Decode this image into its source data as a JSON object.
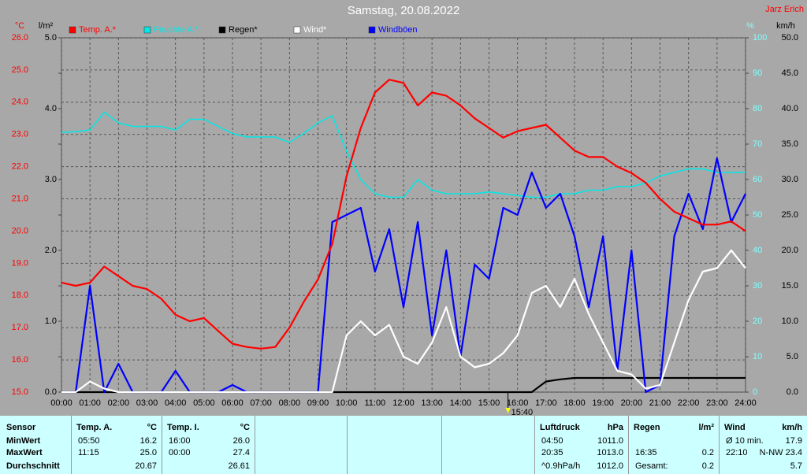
{
  "chart_data": {
    "type": "line",
    "title": "Samstag, 20.08.2022",
    "author": "Jarz Erich",
    "now": "15:40",
    "x": [
      0,
      0.5,
      1,
      1.5,
      2,
      2.5,
      3,
      3.5,
      4,
      4.5,
      5,
      5.5,
      6,
      6.5,
      7,
      7.5,
      8,
      8.5,
      9,
      9.5,
      10,
      10.5,
      11,
      11.5,
      12,
      12.5,
      13,
      13.5,
      14,
      14.5,
      15,
      15.5,
      16,
      16.5,
      17,
      17.5,
      18,
      18.5,
      19,
      19.5,
      20,
      20.5,
      21,
      21.5,
      22,
      22.5,
      23,
      23.5,
      24
    ],
    "xlim": [
      0,
      24
    ],
    "xticks": [
      {
        "value": 0,
        "label": "00:00"
      },
      {
        "value": 1,
        "label": "01:00"
      },
      {
        "value": 2,
        "label": "02:00"
      },
      {
        "value": 3,
        "label": "03:00"
      },
      {
        "value": 4,
        "label": "04:00"
      },
      {
        "value": 5,
        "label": "05:00"
      },
      {
        "value": 6,
        "label": "06:00"
      },
      {
        "value": 7,
        "label": "07:00"
      },
      {
        "value": 8,
        "label": "08:00"
      },
      {
        "value": 9,
        "label": "09:00"
      },
      {
        "value": 10,
        "label": "10:00"
      },
      {
        "value": 11,
        "label": "11:00"
      },
      {
        "value": 12,
        "label": "12:00"
      },
      {
        "value": 13,
        "label": "13:00"
      },
      {
        "value": 14,
        "label": "14:00"
      },
      {
        "value": 15,
        "label": "15:00"
      },
      {
        "value": 16,
        "label": "16:00"
      },
      {
        "value": 17,
        "label": "17:00"
      },
      {
        "value": 18,
        "label": "18:00"
      },
      {
        "value": 19,
        "label": "19:00"
      },
      {
        "value": 20,
        "label": "20:00"
      },
      {
        "value": 21,
        "label": "21:00"
      },
      {
        "value": 22,
        "label": "22:00"
      },
      {
        "value": 23,
        "label": "23:00"
      },
      {
        "value": 24,
        "label": "24:00"
      }
    ],
    "ylabel": "°C",
    "ylim": [
      15,
      26
    ],
    "yticks": [
      {
        "value": 15,
        "label": "15.0"
      },
      {
        "value": 16,
        "label": "16.0"
      },
      {
        "value": 17,
        "label": "17.0"
      },
      {
        "value": 18,
        "label": "18.0"
      },
      {
        "value": 19,
        "label": "19.0"
      },
      {
        "value": 20,
        "label": "20.0"
      },
      {
        "value": 21,
        "label": "21.0"
      },
      {
        "value": 22,
        "label": "22.0"
      },
      {
        "value": 23,
        "label": "23.0"
      },
      {
        "value": 24,
        "label": "24.0"
      },
      {
        "value": 25,
        "label": "25.0"
      },
      {
        "value": 26,
        "label": "26.0"
      }
    ],
    "y2label": "l/m²",
    "y2lim": [
      0,
      5
    ],
    "y2ticks": [
      {
        "value": 0,
        "label": "0.0"
      },
      {
        "value": 1,
        "label": "1.0"
      },
      {
        "value": 2,
        "label": "2.0"
      },
      {
        "value": 3,
        "label": "3.0"
      },
      {
        "value": 4,
        "label": "4.0"
      },
      {
        "value": 5,
        "label": "5.0"
      }
    ],
    "y3label": "%",
    "y3lim": [
      0,
      100
    ],
    "y3ticks": [
      0,
      10,
      20,
      30,
      40,
      50,
      60,
      70,
      80,
      90,
      100
    ],
    "y4label": "km/h",
    "y4lim": [
      0,
      50
    ],
    "y4ticks": [
      {
        "value": 0,
        "label": "0.0"
      },
      {
        "value": 5,
        "label": "5.0"
      },
      {
        "value": 10,
        "label": "10.0"
      },
      {
        "value": 15,
        "label": "15.0"
      },
      {
        "value": 20,
        "label": "20.0"
      },
      {
        "value": 25,
        "label": "25.0"
      },
      {
        "value": 30,
        "label": "30.0"
      },
      {
        "value": 35,
        "label": "35.0"
      },
      {
        "value": 40,
        "label": "40.0"
      },
      {
        "value": 45,
        "label": "45.0"
      },
      {
        "value": 50,
        "label": "50.0"
      }
    ],
    "grid": true,
    "series": [
      {
        "name": "Temp. A.*",
        "color": "#ff0000",
        "axis": "y",
        "values": [
          18.4,
          18.3,
          18.4,
          18.9,
          18.6,
          18.3,
          18.2,
          17.9,
          17.4,
          17.2,
          17.3,
          16.9,
          16.5,
          16.4,
          16.35,
          16.4,
          17.0,
          17.8,
          18.5,
          19.6,
          21.7,
          23.2,
          24.3,
          24.7,
          24.6,
          23.9,
          24.3,
          24.2,
          23.9,
          23.5,
          23.2,
          22.9,
          23.1,
          23.2,
          23.3,
          22.9,
          22.5,
          22.3,
          22.3,
          22.0,
          21.8,
          21.5,
          21.0,
          20.6,
          20.4,
          20.2,
          20.2,
          20.3,
          20.0
        ]
      },
      {
        "name": "Feuchte A.*",
        "color": "#00e8e8",
        "axis": "y3",
        "values": [
          73.3,
          73.5,
          74,
          79,
          76,
          75,
          75,
          75,
          74,
          77,
          77,
          75,
          73,
          72,
          72,
          72,
          70.5,
          73,
          76,
          78,
          68,
          60,
          56,
          55,
          55,
          60,
          57,
          56,
          56,
          56,
          56.5,
          56,
          55.5,
          55,
          55,
          56,
          56,
          57,
          57,
          58,
          58,
          59,
          61,
          62,
          63,
          63,
          62,
          62,
          62
        ]
      },
      {
        "name": "Regen*",
        "color": "#000000",
        "axis": "y2",
        "values": [
          0,
          0,
          0,
          0,
          0,
          0,
          0,
          0,
          0,
          0,
          0,
          0,
          0,
          0,
          0,
          0,
          0,
          0,
          0,
          0,
          0,
          0,
          0,
          0,
          0,
          0,
          0,
          0,
          0,
          0,
          0,
          0,
          0,
          0,
          0.15,
          0.18,
          0.2,
          0.2,
          0.2,
          0.2,
          0.2,
          0.2,
          0.2,
          0.2,
          0.2,
          0.2,
          0.2,
          0.2,
          0.2
        ]
      },
      {
        "name": "Wind*",
        "color": "#ffffff",
        "axis": "y4",
        "values": [
          0,
          0,
          1.5,
          0.5,
          0,
          0,
          0,
          0,
          0,
          0,
          0,
          0,
          0,
          0,
          0,
          0,
          0,
          0,
          0,
          0,
          8,
          10,
          8,
          9.5,
          5,
          4,
          7,
          12,
          5,
          3.5,
          4,
          5.5,
          8,
          14,
          15,
          12,
          16,
          11,
          7,
          3,
          2.5,
          0.5,
          1,
          7,
          13,
          17,
          17.5,
          20,
          17.5
        ]
      },
      {
        "name": "Windböen",
        "color": "#0000ff",
        "axis": "y4",
        "values": [
          0,
          0,
          15,
          0,
          4,
          0,
          0,
          0,
          3,
          0,
          0,
          0,
          1,
          0,
          0,
          0,
          0,
          0,
          0,
          24,
          25,
          26,
          17,
          23,
          12,
          24,
          8,
          20,
          5,
          18,
          16,
          26,
          25,
          31,
          26,
          28,
          22,
          12,
          22,
          3,
          20,
          0,
          1,
          22,
          28,
          23,
          33,
          24,
          28
        ]
      }
    ]
  },
  "summary": {
    "row_labels": [
      "Sensor",
      "MinWert",
      "MaxWert",
      "Durchschnitt"
    ],
    "columns": [
      {
        "name": "Temp. A.",
        "unit": "°C",
        "min": {
          "time": "05:50",
          "value": "16.2"
        },
        "max": {
          "time": "11:15",
          "value": "25.0"
        },
        "avg": {
          "value": "20.67"
        }
      },
      {
        "name": "Temp. I.",
        "unit": "°C",
        "min": {
          "time": "16:00",
          "value": "26.0"
        },
        "max": {
          "time": "00:00",
          "value": "27.4"
        },
        "avg": {
          "value": "26.61"
        }
      },
      {
        "name": "Luftdruck",
        "unit": "hPa",
        "min": {
          "time": "04:50",
          "value": "1011.0"
        },
        "max": {
          "time": "20:35",
          "value": "1013.0"
        },
        "avg": {
          "time": "^0.9hPa/h",
          "value": "1012.0"
        }
      },
      {
        "name": "Regen",
        "unit": "l/m²",
        "max": {
          "time": "16:35",
          "value": "0.2"
        },
        "avg": {
          "time": "Gesamt:",
          "value": "0.2"
        }
      },
      {
        "name": "Wind",
        "unit": "km/h",
        "min": {
          "time": "Ø 10 min.",
          "value": "17.9"
        },
        "max": {
          "time": "22:10",
          "value": "N-NW 23.4"
        },
        "avg": {
          "value": "5.7"
        }
      }
    ]
  }
}
